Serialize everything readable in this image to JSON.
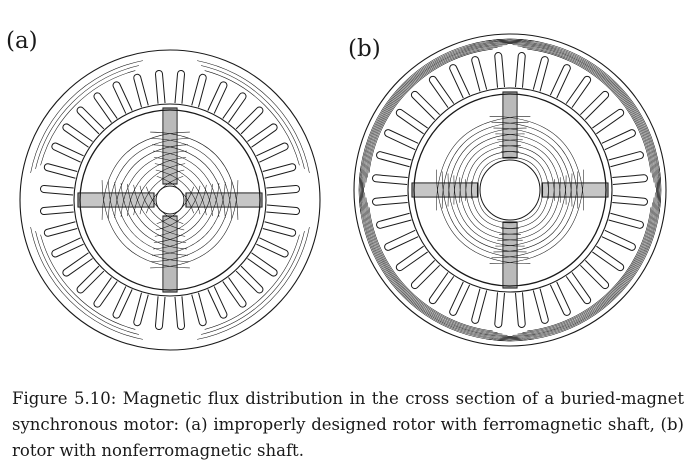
{
  "figure": {
    "panels": [
      {
        "label": "(a)",
        "description_key": "ferromagnetic-shaft"
      },
      {
        "label": "(b)",
        "description_key": "nonferromagnetic-shaft"
      }
    ],
    "caption": "Figure 5.10: Magnetic flux distribution in the cross section of a buried-magnet synchronous motor: (a) improperly designed rotor with ferromagnetic shaft, (b) rotor with nonferromagnetic shaft.",
    "stator_slots": 36,
    "poles": 4
  }
}
